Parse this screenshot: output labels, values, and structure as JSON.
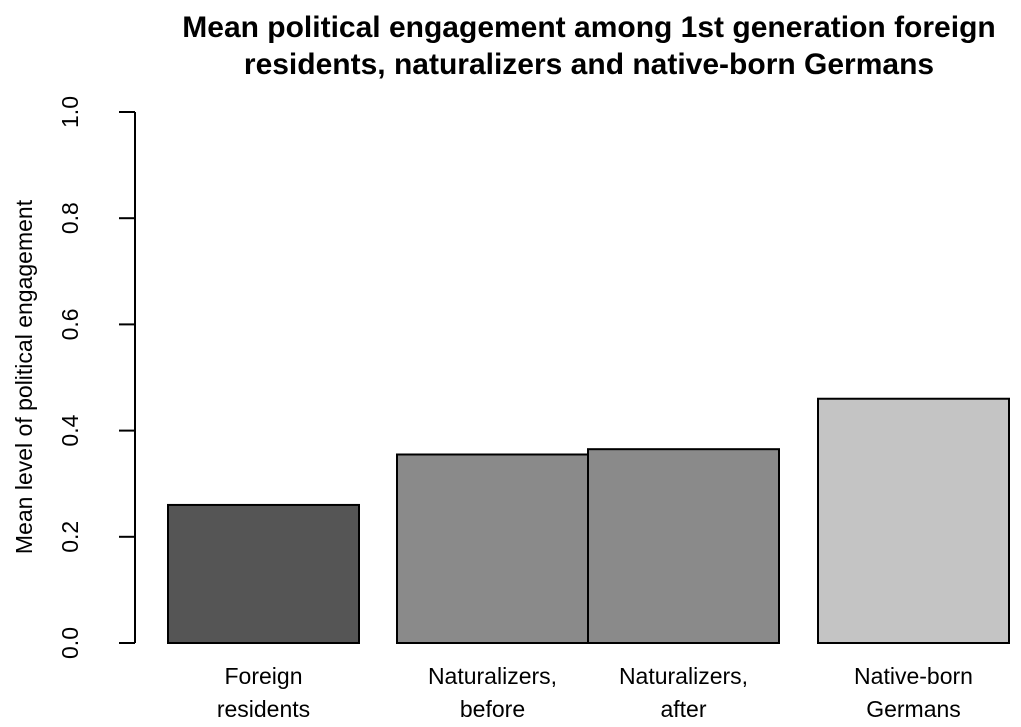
{
  "chart_data": {
    "type": "bar",
    "title": [
      "Mean political engagement among 1st generation foreign",
      "residents, naturalizers and native-born Germans"
    ],
    "ylabel": "Mean level of political engagement",
    "xlabel": "",
    "ylim": [
      0,
      1.0
    ],
    "yticks": [
      "0.0",
      "0.2",
      "0.4",
      "0.6",
      "0.8",
      "1.0"
    ],
    "grid": false,
    "categories": [
      {
        "lines": [
          "Foreign",
          "residents"
        ],
        "value": 0.26,
        "color": "#555555"
      },
      {
        "lines": [
          "Naturalizers,",
          "before"
        ],
        "value": 0.355,
        "color": "#8a8a8a"
      },
      {
        "lines": [
          "Naturalizers,",
          "after"
        ],
        "value": 0.365,
        "color": "#8a8a8a"
      },
      {
        "lines": [
          "Native-born",
          "Germans"
        ],
        "value": 0.46,
        "color": "#c4c4c4"
      }
    ]
  }
}
